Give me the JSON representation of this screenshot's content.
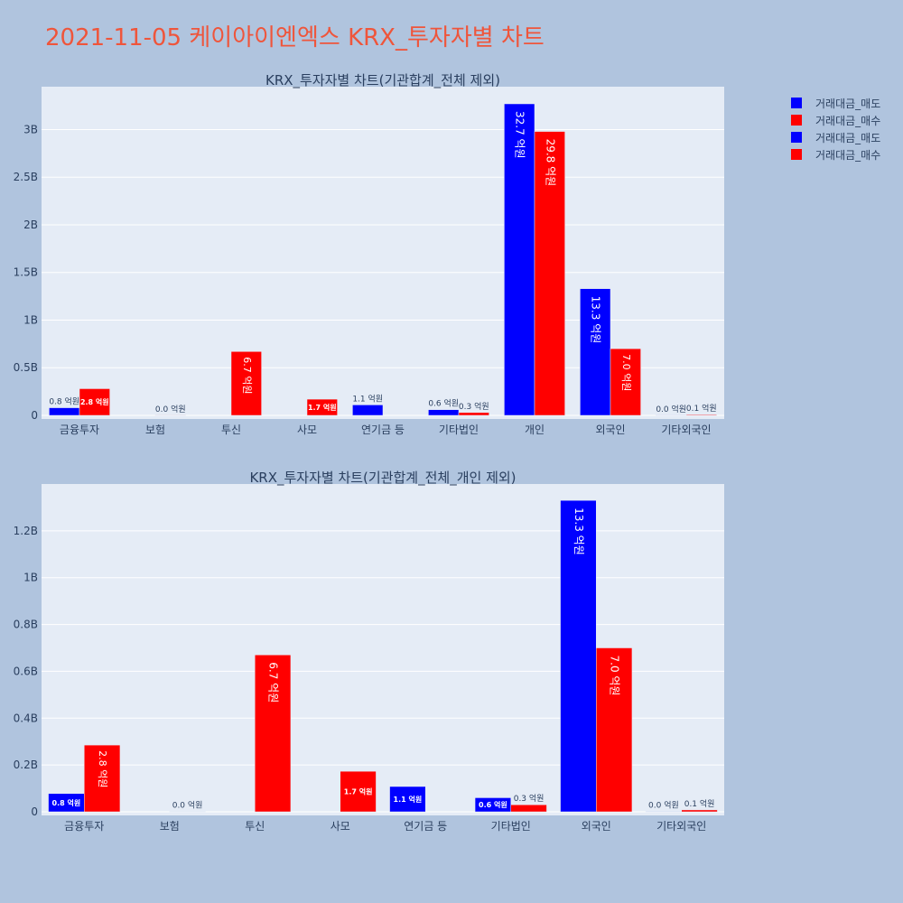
{
  "page_title": "2021-11-05 케이아이엔엑스 KRX_투자자별 차트",
  "colors": {
    "page_bg": "#b0c4de",
    "plot_bg": "#e5ecf6",
    "grid": "#ffffff",
    "sell": "#0000ff",
    "buy": "#ff0000",
    "title_text": "#ef553b",
    "axis_text": "#2a3f5f"
  },
  "legend": {
    "placement": "top-right",
    "entries": [
      {
        "label": "거래대금_매도",
        "color": "#0000ff"
      },
      {
        "label": "거래대금_매수",
        "color": "#ff0000"
      },
      {
        "label": "거래대금_매도",
        "color": "#0000ff"
      },
      {
        "label": "거래대금_매수",
        "color": "#ff0000"
      }
    ]
  },
  "chart_data": [
    {
      "type": "bar",
      "title": "KRX_투자자별 차트(기관합계_전체 제외)",
      "categories": [
        "금융투자",
        "보험",
        "투신",
        "사모",
        "연기금 등",
        "기타법인",
        "개인",
        "외국인",
        "기타외국인"
      ],
      "ylim": [
        0,
        3.45
      ],
      "yticks": [
        0,
        0.5,
        1,
        1.5,
        2,
        2.5,
        3
      ],
      "ytick_labels": [
        "0",
        "0.5B",
        "1B",
        "1.5B",
        "2B",
        "2.5B",
        "3B"
      ],
      "grid": true,
      "series": [
        {
          "name": "거래대금_매도",
          "color": "#0000ff",
          "values": [
            0.08,
            0,
            0,
            0,
            0.11,
            0.06,
            3.27,
            1.33,
            0.002
          ],
          "labels": [
            "0.8 억원",
            "",
            "",
            "",
            "1.1 억원",
            "0.6 억원",
            "32.7 억원",
            "13.3 억원",
            "0.0 억원"
          ]
        },
        {
          "name": "거래대금_매수",
          "color": "#ff0000",
          "values": [
            0.28,
            0.001,
            0.67,
            0.17,
            0,
            0.03,
            2.98,
            0.7,
            0.008
          ],
          "labels": [
            "2.8 억원",
            "0.0 억원",
            "6.7 억원",
            "1.7 억원",
            "",
            "0.3 억원",
            "29.8 억원",
            "7.0 억원",
            "0.1 억원"
          ]
        }
      ]
    },
    {
      "type": "bar",
      "title": "KRX_투자자별 차트(기관합계_전체_개인 제외)",
      "categories": [
        "금융투자",
        "보험",
        "투신",
        "사모",
        "연기금 등",
        "기타법인",
        "외국인",
        "기타외국인"
      ],
      "ylim": [
        0,
        1.4
      ],
      "yticks": [
        0,
        0.2,
        0.4,
        0.6,
        0.8,
        1.0,
        1.2
      ],
      "ytick_labels": [
        "0",
        "0.2B",
        "0.4B",
        "0.6B",
        "0.8B",
        "1B",
        "1.2B"
      ],
      "grid": true,
      "series": [
        {
          "name": "거래대금_매도",
          "color": "#0000ff",
          "values": [
            0.078,
            0,
            0,
            0,
            0.108,
            0.06,
            1.33,
            0.002
          ],
          "labels": [
            "0.8 억원",
            "",
            "",
            "",
            "1.1 억원",
            "0.6 억원",
            "13.3 억원",
            "0.0 억원"
          ]
        },
        {
          "name": "거래대금_매수",
          "color": "#ff0000",
          "values": [
            0.285,
            0.001,
            0.67,
            0.173,
            0,
            0.03,
            0.7,
            0.008
          ],
          "labels": [
            "2.8 억원",
            "0.0 억원",
            "6.7 억원",
            "1.7 억원",
            "",
            "0.3 억원",
            "7.0 억원",
            "0.1 억원"
          ]
        }
      ]
    }
  ]
}
